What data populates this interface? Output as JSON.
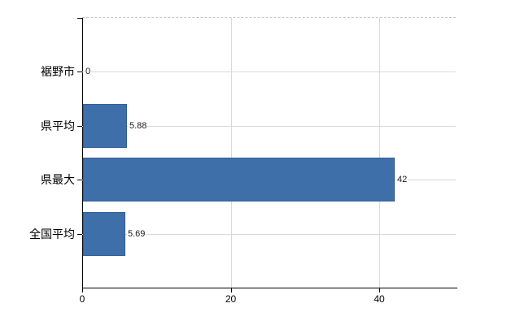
{
  "chart_data": {
    "type": "bar",
    "orientation": "horizontal",
    "title": "",
    "xlabel": "",
    "ylabel": "",
    "categories": [
      "裾野市",
      "県平均",
      "県最大",
      "全国平均"
    ],
    "values": [
      0,
      5.88,
      42,
      5.69
    ],
    "value_labels": [
      "0",
      "5.88",
      "42",
      "5.69"
    ],
    "x_tick_labels": [
      "0",
      "20",
      "40"
    ],
    "x_tick_values": [
      0,
      20,
      40
    ],
    "xlim": [
      0,
      50.3
    ],
    "grid": true,
    "legend": false,
    "colors": {
      "bar_fill": "#3f6fa8",
      "bar_border": "#2f5f99",
      "gridline": "#d9d9d9",
      "axis": "#000000",
      "text": "#1a1a1a"
    }
  }
}
